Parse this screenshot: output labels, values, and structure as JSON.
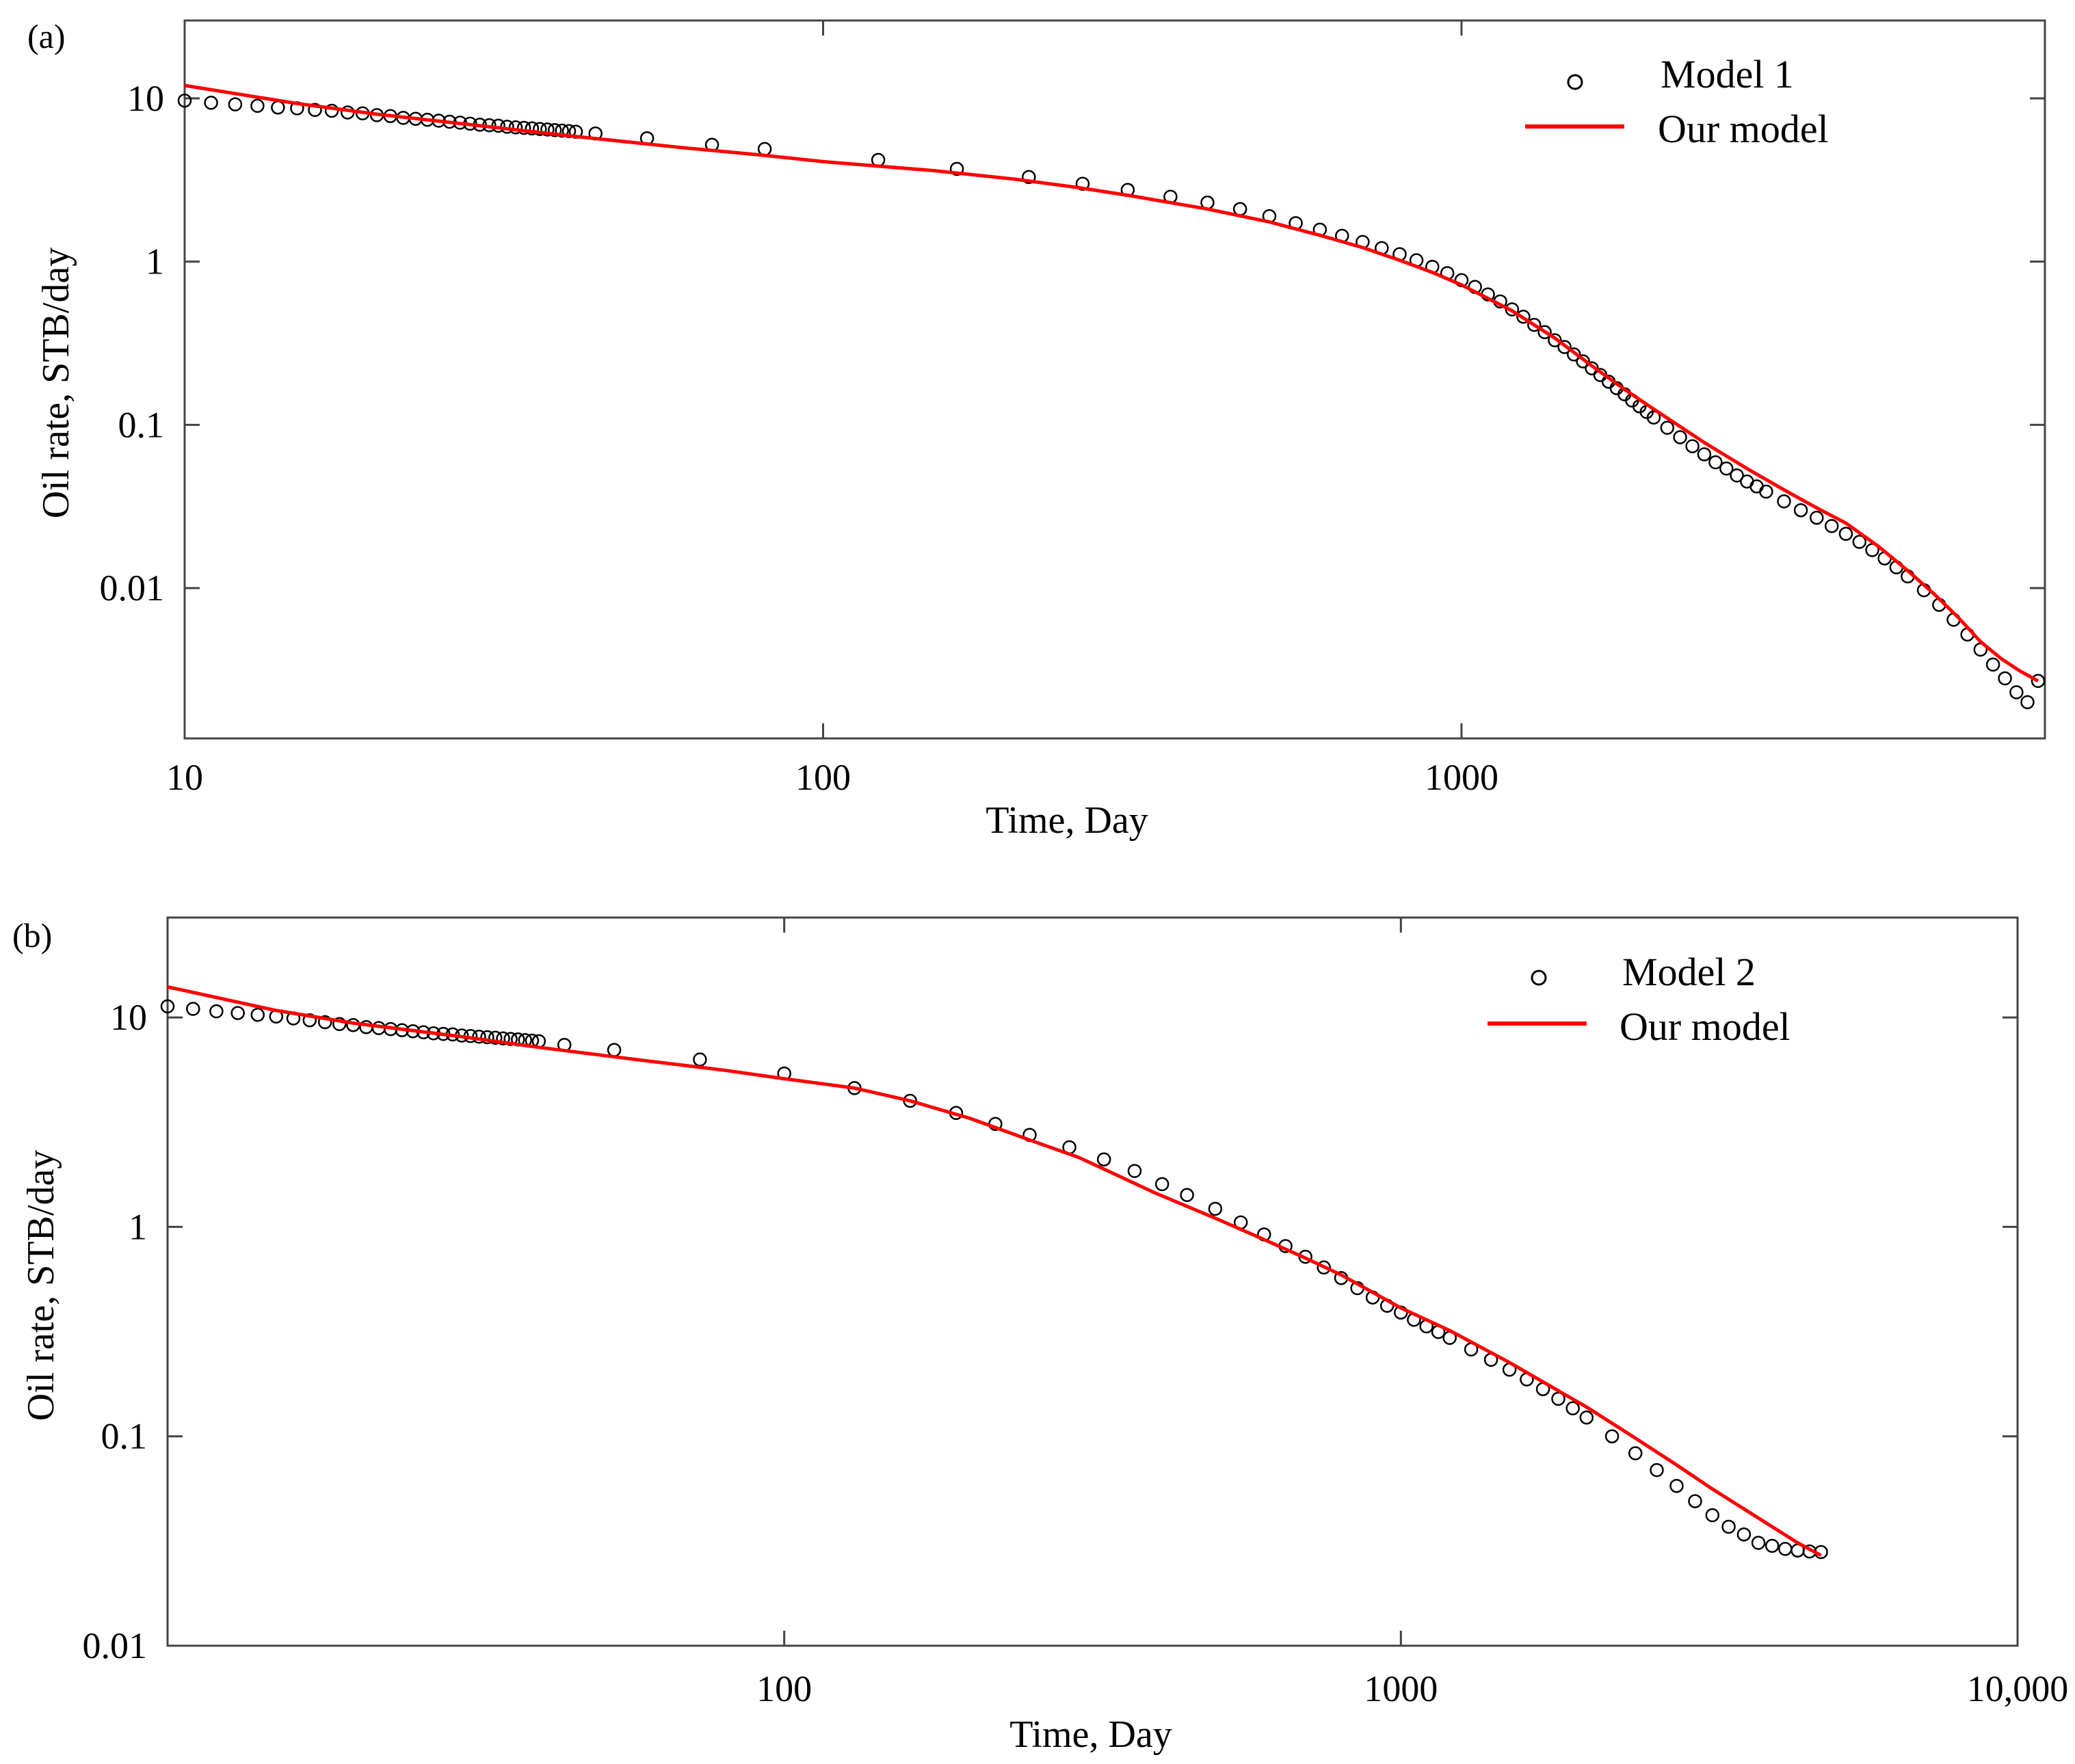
{
  "chart_data": [
    {
      "panel_label": "(a)",
      "type": "scatter",
      "scale": "log-log",
      "xlabel": "Time, Day",
      "ylabel": "Oil rate, STB/day",
      "xlim": [
        10,
        8200
      ],
      "ylim": [
        0.0012,
        30
      ],
      "xticks": [
        {
          "value": 10,
          "label": "10"
        },
        {
          "value": 100,
          "label": "100"
        },
        {
          "value": 1000,
          "label": "1000"
        }
      ],
      "yticks": [
        {
          "value": 10,
          "label": "10"
        },
        {
          "value": 1,
          "label": "1"
        },
        {
          "value": 0.1,
          "label": "0.1"
        },
        {
          "value": 0.01,
          "label": "0.01"
        }
      ],
      "legend_position": "top-right",
      "series": [
        {
          "name": "Model 1",
          "kind": "markers",
          "color": "#000000",
          "x": [
            10,
            11,
            12,
            13,
            14,
            15,
            16,
            17,
            18,
            19,
            20,
            21,
            22,
            23,
            24,
            25,
            26,
            27,
            28,
            29,
            30,
            31,
            32,
            33,
            34,
            35,
            36,
            37,
            38,
            39,
            40,
            41,
            44,
            53,
            67,
            81,
            122,
            162,
            210,
            255,
            300,
            350,
            400,
            450,
            500,
            550,
            600,
            650,
            700,
            750,
            800,
            850,
            900,
            950,
            1000,
            1050,
            1100,
            1150,
            1200,
            1250,
            1300,
            1350,
            1400,
            1450,
            1500,
            1550,
            1600,
            1650,
            1700,
            1750,
            1800,
            1850,
            1900,
            1950,
            2000,
            2100,
            2200,
            2300,
            2400,
            2500,
            2600,
            2700,
            2800,
            2900,
            3000,
            3200,
            3400,
            3600,
            3800,
            4000,
            4200,
            4400,
            4600,
            4800,
            5000,
            5300,
            5600,
            5900,
            6200,
            6500,
            6800,
            7100,
            7400,
            7700,
            8000
          ],
          "y": [
            9.7,
            9.4,
            9.2,
            9.0,
            8.8,
            8.7,
            8.5,
            8.4,
            8.2,
            8.1,
            7.9,
            7.8,
            7.6,
            7.5,
            7.4,
            7.3,
            7.2,
            7.1,
            7.0,
            6.9,
            6.85,
            6.8,
            6.7,
            6.65,
            6.6,
            6.55,
            6.5,
            6.45,
            6.4,
            6.35,
            6.3,
            6.25,
            6.1,
            5.7,
            5.2,
            4.9,
            4.2,
            3.7,
            3.3,
            3.0,
            2.75,
            2.5,
            2.3,
            2.1,
            1.9,
            1.72,
            1.57,
            1.44,
            1.32,
            1.21,
            1.11,
            1.02,
            0.93,
            0.85,
            0.77,
            0.7,
            0.63,
            0.57,
            0.51,
            0.46,
            0.41,
            0.37,
            0.33,
            0.3,
            0.27,
            0.245,
            0.222,
            0.202,
            0.184,
            0.168,
            0.154,
            0.141,
            0.13,
            0.12,
            0.111,
            0.096,
            0.084,
            0.074,
            0.066,
            0.059,
            0.054,
            0.049,
            0.045,
            0.042,
            0.039,
            0.034,
            0.03,
            0.027,
            0.024,
            0.0215,
            0.0192,
            0.0171,
            0.0152,
            0.0134,
            0.0118,
            0.0097,
            0.0079,
            0.0064,
            0.0052,
            0.0042,
            0.0034,
            0.0028,
            0.0023,
            0.002,
            0.0027
          ]
        },
        {
          "name": "Our model",
          "kind": "line",
          "color": "#ff0000",
          "x": [
            10,
            15,
            20,
            30,
            40,
            60,
            80,
            100,
            150,
            200,
            250,
            300,
            400,
            500,
            600,
            700,
            800,
            900,
            1000,
            1200,
            1400,
            1600,
            1800,
            2000,
            2400,
            2800,
            3200,
            3600,
            4000,
            4500,
            5000,
            5500,
            6000,
            6500,
            7000,
            7500,
            8000
          ],
          "y": [
            12.0,
            9.3,
            8.0,
            6.7,
            5.9,
            5.0,
            4.5,
            4.1,
            3.6,
            3.2,
            2.85,
            2.55,
            2.1,
            1.75,
            1.45,
            1.22,
            1.02,
            0.86,
            0.72,
            0.5,
            0.34,
            0.23,
            0.165,
            0.125,
            0.078,
            0.054,
            0.04,
            0.031,
            0.025,
            0.018,
            0.0128,
            0.0092,
            0.0066,
            0.0047,
            0.0037,
            0.0031,
            0.0027
          ]
        }
      ]
    },
    {
      "panel_label": "(b)",
      "type": "scatter",
      "scale": "log-log",
      "xlabel": "Time, Day",
      "ylabel": "Oil rate, STB/day",
      "xlim": [
        10,
        10000
      ],
      "ylim": [
        0.01,
        30
      ],
      "xticks": [
        {
          "value": 100,
          "label": "100"
        },
        {
          "value": 1000,
          "label": "1000"
        },
        {
          "value": 10000,
          "label": "10,000"
        }
      ],
      "yticks": [
        {
          "value": 10,
          "label": "10"
        },
        {
          "value": 1,
          "label": "1"
        },
        {
          "value": 0.1,
          "label": "0.1"
        },
        {
          "value": 0.01,
          "label": "0.01"
        }
      ],
      "legend_position": "top-right",
      "series": [
        {
          "name": "Model 2",
          "kind": "markers",
          "color": "#000000",
          "x": [
            10,
            11,
            12,
            13,
            14,
            15,
            16,
            17,
            18,
            19,
            20,
            21,
            22,
            23,
            24,
            25,
            26,
            27,
            28,
            29,
            30,
            31,
            32,
            33,
            34,
            35,
            36,
            37,
            38,
            39,
            40,
            44,
            53,
            73,
            100,
            130,
            160,
            190,
            220,
            250,
            290,
            330,
            370,
            410,
            450,
            500,
            550,
            600,
            650,
            700,
            750,
            800,
            850,
            900,
            950,
            1000,
            1050,
            1100,
            1150,
            1200,
            1300,
            1400,
            1500,
            1600,
            1700,
            1800,
            1900,
            2000,
            2200,
            2400,
            2600,
            2800,
            3000,
            3200,
            3400,
            3600,
            3800,
            4000,
            4200,
            4400,
            4600,
            4800
          ],
          "y": [
            11.3,
            11.0,
            10.7,
            10.5,
            10.3,
            10.1,
            9.9,
            9.7,
            9.5,
            9.3,
            9.2,
            9.0,
            8.9,
            8.8,
            8.7,
            8.6,
            8.5,
            8.4,
            8.35,
            8.3,
            8.2,
            8.15,
            8.1,
            8.05,
            8.0,
            7.95,
            7.9,
            7.85,
            7.8,
            7.75,
            7.7,
            7.4,
            7.0,
            6.3,
            5.4,
            4.6,
            4.0,
            3.5,
            3.1,
            2.75,
            2.4,
            2.1,
            1.85,
            1.6,
            1.42,
            1.22,
            1.05,
            0.92,
            0.81,
            0.72,
            0.64,
            0.57,
            0.51,
            0.46,
            0.42,
            0.39,
            0.36,
            0.335,
            0.315,
            0.295,
            0.26,
            0.232,
            0.208,
            0.187,
            0.168,
            0.151,
            0.136,
            0.123,
            0.1,
            0.083,
            0.069,
            0.058,
            0.049,
            0.042,
            0.037,
            0.034,
            0.031,
            0.03,
            0.029,
            0.0285,
            0.0282,
            0.028
          ]
        },
        {
          "name": "Our model",
          "kind": "line",
          "color": "#ff0000",
          "x": [
            10,
            15,
            20,
            30,
            40,
            60,
            80,
            100,
            130,
            160,
            200,
            250,
            300,
            400,
            500,
            600,
            700,
            800,
            1000,
            1200,
            1500,
            1800,
            2000,
            2400,
            2800,
            3200,
            3600,
            4000,
            4400,
            4800
          ],
          "y": [
            14.0,
            10.8,
            9.4,
            8.1,
            7.2,
            6.2,
            5.6,
            5.1,
            4.6,
            4.0,
            3.3,
            2.6,
            2.15,
            1.45,
            1.1,
            0.87,
            0.71,
            0.59,
            0.41,
            0.32,
            0.225,
            0.165,
            0.138,
            0.098,
            0.073,
            0.056,
            0.045,
            0.037,
            0.031,
            0.027
          ]
        }
      ]
    }
  ]
}
